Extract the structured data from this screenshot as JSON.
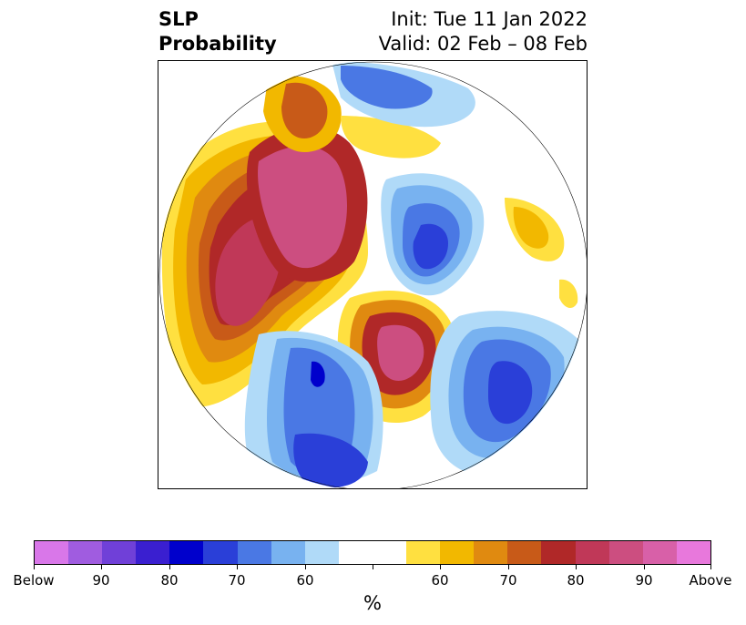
{
  "title": {
    "left_line1": "SLP",
    "left_line2": "Probability",
    "right_line1": "Init: Tue 11 Jan 2022",
    "right_line2": "Valid: 02 Feb – 08 Feb"
  },
  "colorbar": {
    "colors": [
      "#d977e9",
      "#a05ce0",
      "#7040d8",
      "#3a1fd0",
      "#0000cc",
      "#2a3fd8",
      "#4a78e4",
      "#78b2f0",
      "#b0daf8",
      "#ffffff",
      "#ffffff",
      "#ffe040",
      "#f2b800",
      "#e08a10",
      "#c85a18",
      "#b02828",
      "#c03858",
      "#cc4e80",
      "#d860a8",
      "#e878dc"
    ],
    "tick_labels": [
      "Below",
      "90",
      "80",
      "70",
      "60",
      "",
      "60",
      "70",
      "80",
      "90",
      "Above"
    ],
    "units": "%"
  }
}
